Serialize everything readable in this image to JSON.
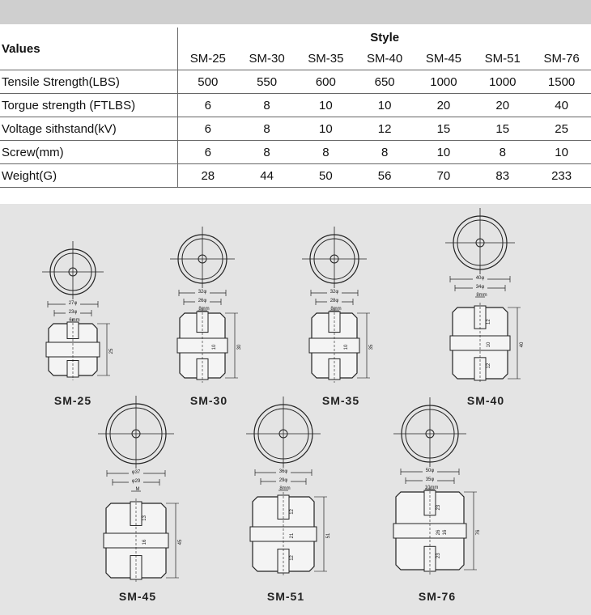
{
  "table": {
    "values_label": "Values",
    "style_label": "Style",
    "styles": [
      "SM-25",
      "SM-30",
      "SM-35",
      "SM-40",
      "SM-45",
      "SM-51",
      "SM-76"
    ],
    "rows": [
      {
        "label": "Tensile Strength(LBS)",
        "values": [
          "500",
          "550",
          "600",
          "650",
          "1000",
          "1000",
          "1500"
        ]
      },
      {
        "label": "Torgue strength (FTLBS)",
        "values": [
          "6",
          "8",
          "10",
          "10",
          "20",
          "20",
          "40"
        ]
      },
      {
        "label": "Voltage sithstand(kV)",
        "values": [
          "6",
          "8",
          "10",
          "12",
          "15",
          "15",
          "25"
        ]
      },
      {
        "label": "Screw(mm)",
        "values": [
          "6",
          "8",
          "8",
          "8",
          "10",
          "8",
          "10"
        ]
      },
      {
        "label": "Weight(G)",
        "values": [
          "28",
          "44",
          "50",
          "56",
          "70",
          "83",
          "233"
        ]
      }
    ]
  },
  "drawings": [
    {
      "name": "SM-25",
      "outer_dia": "27φ",
      "inner_dia": "23φ",
      "screw": "6mm",
      "height": "25"
    },
    {
      "name": "SM-30",
      "outer_dia": "32φ",
      "inner_dia": "26φ",
      "screw": "8mm",
      "height": "30",
      "side_dim": "10"
    },
    {
      "name": "SM-35",
      "outer_dia": "32φ",
      "inner_dia": "28φ",
      "screw": "8mm",
      "height": "35",
      "side_dim": "10"
    },
    {
      "name": "SM-40",
      "outer_dia": "40φ",
      "inner_dia": "34φ",
      "screw": "8mm",
      "height": "40",
      "upper": "12",
      "mid": "10",
      "lower": "12"
    },
    {
      "name": "SM-45",
      "outer_dia": "φ37",
      "inner_dia": "φ29",
      "screw": "M",
      "height": "45",
      "upper": "13",
      "mid": "16"
    },
    {
      "name": "SM-51",
      "outer_dia": "36φ",
      "inner_dia": "29φ",
      "screw": "8mm",
      "height": "51",
      "upper": "12",
      "mid": "21",
      "lower": "12"
    },
    {
      "name": "SM-76",
      "outer_dia": "50φ",
      "inner_dia": "35φ",
      "screw": "10mm",
      "height": "76",
      "upper": "23",
      "mid": "26",
      "mid2": "16",
      "lower": "23"
    }
  ]
}
